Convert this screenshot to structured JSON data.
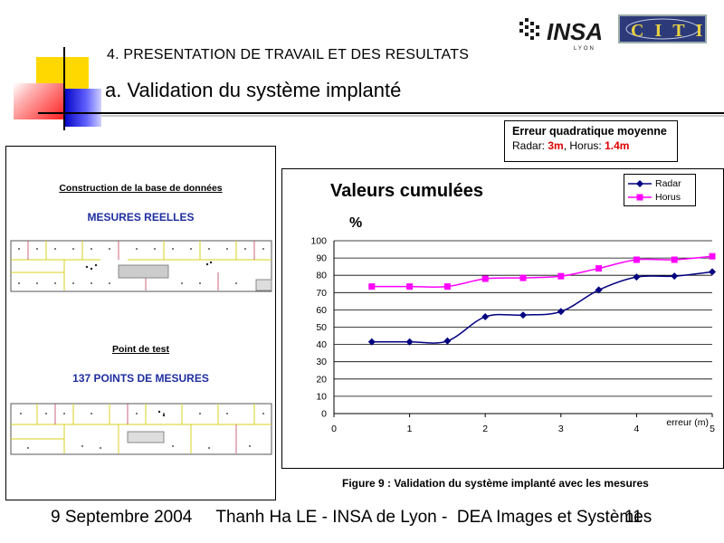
{
  "slide": {
    "section": "4. PRESENTATION DE TRAVAIL ET DES RESULTATS",
    "subtitle": "a. Validation du système implanté"
  },
  "logos": {
    "insa": "INSA",
    "insa_sub": "LYON",
    "citi": "CITI"
  },
  "error_box": {
    "title": "Erreur quadratique moyenne",
    "radar_label": "Radar: ",
    "radar_value": "3m",
    "separator": ", Horus: ",
    "horus_value": "1.4m"
  },
  "left_panel": {
    "heading1": "Construction de la base de données",
    "label1": "MESURES REELLES",
    "heading2": "Point de test",
    "label2": "137 POINTS DE MESURES"
  },
  "chart_data": {
    "type": "line",
    "title": "Valeurs cumulées",
    "ylabel": "%",
    "xlabel": "erreur (m)",
    "x": [
      0.5,
      1,
      1.5,
      2,
      2.5,
      3,
      3.5,
      4,
      4.5,
      5
    ],
    "xticks": [
      0,
      1,
      2,
      3,
      4,
      5
    ],
    "yticks": [
      0,
      10,
      20,
      30,
      40,
      50,
      60,
      70,
      80,
      90,
      100
    ],
    "xlim": [
      0,
      5
    ],
    "ylim": [
      0,
      100
    ],
    "grid": "horizontal",
    "legend": "top-right",
    "series": [
      {
        "name": "Radar",
        "color": "#000080",
        "marker": "diamond",
        "values": [
          41.5,
          41.5,
          42,
          56,
          57,
          59,
          71.5,
          79,
          79.5,
          82
        ]
      },
      {
        "name": "Horus",
        "color": "#ff00ff",
        "marker": "square",
        "values": [
          73.5,
          73.5,
          73.5,
          78,
          78.5,
          79.5,
          84,
          89,
          89,
          91
        ]
      }
    ]
  },
  "caption": "Figure 9 : Validation du système implanté avec les mesures",
  "footer": {
    "text": "9 Septembre 2004     Thanh Ha LE - INSA de Lyon -  DEA Images et Systèmes",
    "page": "11"
  }
}
